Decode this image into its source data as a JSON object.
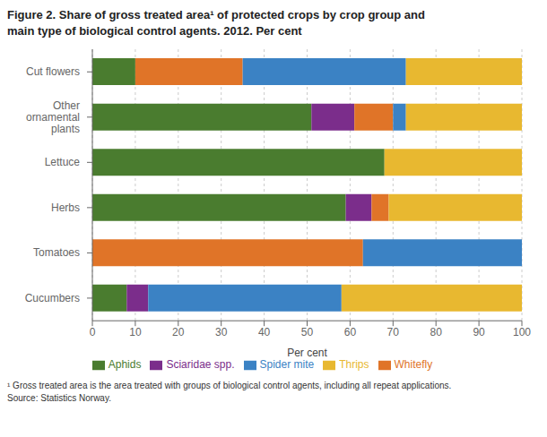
{
  "chart_data": {
    "type": "bar",
    "orientation": "horizontal",
    "stacked": true,
    "title": "Figure 2. Share of gross treated area¹ of protected crops by crop group and\nmain type of biological control agents. 2012. Per cent",
    "categories": [
      "Cut flowers",
      "Other\nornamental\nplants",
      "Lettuce",
      "Herbs",
      "Tomatoes",
      "Cucumbers"
    ],
    "series": [
      {
        "name": "Aphids",
        "color": "#4a7c2f",
        "values": [
          10,
          51,
          68,
          59,
          0,
          8
        ]
      },
      {
        "name": "Sciaridae spp.",
        "color": "#7b2d8b",
        "values": [
          0,
          10,
          0,
          6,
          0,
          5
        ]
      },
      {
        "name": "Whitefly",
        "color": "#e07428",
        "values": [
          25,
          9,
          0,
          4,
          63,
          0
        ]
      },
      {
        "name": "Spider mite",
        "color": "#3b82c4",
        "values": [
          38,
          3,
          0,
          0,
          37,
          45
        ]
      },
      {
        "name": "Thrips",
        "color": "#e8b830",
        "values": [
          27,
          27,
          32,
          31,
          0,
          42
        ]
      }
    ],
    "xlabel": "Per cent",
    "xlim": [
      0,
      100
    ],
    "xticks": [
      0,
      10,
      20,
      30,
      40,
      50,
      60,
      70,
      80,
      90,
      100
    ],
    "grid": true,
    "legend": "bottom",
    "annotations": [
      "¹ Gross treated area is the area treated with groups of biological control agents, including all repeat applications.\nSource: Statistics Norway."
    ]
  }
}
